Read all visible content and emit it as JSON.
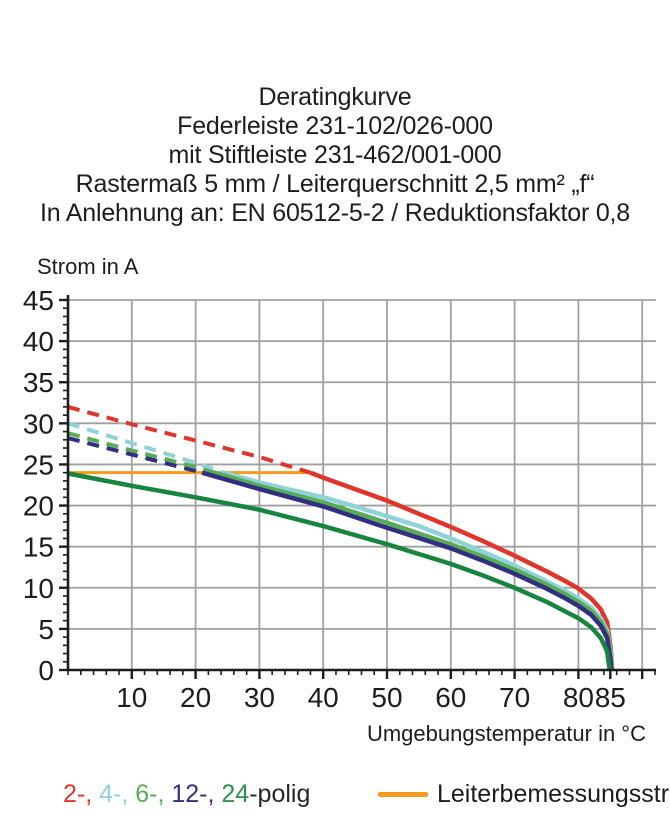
{
  "title_lines": [
    "Deratingkurve",
    "Federleiste 231-102/026-000",
    "mit Stiftleiste 231-462/001-000",
    "Rastermaß 5 mm / Leiterquerschnitt 2,5 mm² „f“",
    "In Anlehnung an: EN 60512-5-2 / Reduktionsfaktor 0,8"
  ],
  "y_axis_title": "Strom in A",
  "x_axis_title": "Umgebungstemperatur in °C",
  "legend": {
    "segments": [
      {
        "text": "2-, ",
        "color": "#e0352b"
      },
      {
        "text": "4-, ",
        "color": "#8fd2d8"
      },
      {
        "text": "6-, ",
        "color": "#58ac57"
      },
      {
        "text": "12-, ",
        "color": "#322f80"
      },
      {
        "text": "24",
        "color": "#2f9151"
      },
      {
        "text": "-polig",
        "color": "#26262e"
      }
    ],
    "rated_label": "Leiterbemessungsstrom",
    "rated_color": "#f29b1d"
  },
  "chart_data": {
    "type": "line",
    "title": "Deratingkurve",
    "xlabel": "Umgebungstemperatur in °C",
    "ylabel": "Strom in A",
    "xlim": [
      0,
      92
    ],
    "ylim": [
      0,
      45
    ],
    "grid": true,
    "x_gridlines": [
      10,
      20,
      30,
      40,
      50,
      60,
      70,
      80,
      90
    ],
    "x_tick_labels": [
      10,
      20,
      30,
      40,
      50,
      60,
      70,
      80,
      85
    ],
    "x_minor_tick_step": 2,
    "y_ticks": [
      0,
      5,
      10,
      15,
      20,
      25,
      30,
      35,
      40,
      45
    ],
    "y_minor_tick_step": 1,
    "rated_current_line": {
      "label": "Leiterbemessungsstrom",
      "value": 24,
      "x_range": [
        0,
        37.5
      ],
      "color": "#f29b1d"
    },
    "series": [
      {
        "name": "2-polig",
        "color": "#e0352b",
        "dashed_points": [
          [
            0,
            32
          ],
          [
            10,
            29.9
          ],
          [
            20,
            27.9
          ],
          [
            30,
            25.9
          ],
          [
            38,
            24
          ]
        ],
        "solid_points": [
          [
            38,
            24
          ],
          [
            40,
            23.4
          ],
          [
            45,
            22
          ],
          [
            50,
            20.6
          ],
          [
            55,
            19
          ],
          [
            60,
            17.4
          ],
          [
            65,
            15.7
          ],
          [
            70,
            13.9
          ],
          [
            75,
            12
          ],
          [
            78,
            10.8
          ],
          [
            80,
            9.9
          ],
          [
            82,
            8.7
          ],
          [
            83.5,
            7.4
          ],
          [
            84.5,
            5.8
          ],
          [
            85.1,
            2.5
          ],
          [
            85.3,
            0
          ]
        ]
      },
      {
        "name": "4-polig",
        "color": "#8fd2d8",
        "dashed_points": [
          [
            0,
            30
          ],
          [
            10,
            27.6
          ],
          [
            20,
            25.2
          ],
          [
            24.5,
            24
          ]
        ],
        "solid_points": [
          [
            24.5,
            24
          ],
          [
            30,
            22.8
          ],
          [
            35,
            21.9
          ],
          [
            40,
            21
          ],
          [
            45,
            19.9
          ],
          [
            50,
            18.7
          ],
          [
            55,
            17.5
          ],
          [
            60,
            16
          ],
          [
            65,
            14.4
          ],
          [
            70,
            12.7
          ],
          [
            75,
            10.8
          ],
          [
            78,
            9.6
          ],
          [
            80,
            8.7
          ],
          [
            82,
            7.6
          ],
          [
            83.5,
            6.3
          ],
          [
            84.5,
            4.8
          ],
          [
            85.1,
            2
          ],
          [
            85.25,
            0
          ]
        ]
      },
      {
        "name": "6-polig",
        "color": "#58ac57",
        "dashed_points": [
          [
            0,
            28.8
          ],
          [
            10,
            26.7
          ],
          [
            20,
            24.7
          ],
          [
            23,
            24
          ]
        ],
        "solid_points": [
          [
            23,
            24
          ],
          [
            30,
            22.4
          ],
          [
            40,
            20.4
          ],
          [
            50,
            17.9
          ],
          [
            60,
            15.3
          ],
          [
            65,
            13.8
          ],
          [
            70,
            12.2
          ],
          [
            75,
            10.4
          ],
          [
            78,
            9.2
          ],
          [
            80,
            8.3
          ],
          [
            82,
            7.2
          ],
          [
            83.5,
            5.9
          ],
          [
            84.5,
            4.4
          ],
          [
            85,
            1.8
          ],
          [
            85.2,
            0
          ]
        ]
      },
      {
        "name": "12-polig",
        "color": "#322f80",
        "dashed_points": [
          [
            0,
            28.2
          ],
          [
            10,
            26.2
          ],
          [
            20,
            24.2
          ],
          [
            21,
            24
          ]
        ],
        "solid_points": [
          [
            21,
            24
          ],
          [
            30,
            22
          ],
          [
            40,
            19.9
          ],
          [
            50,
            17.3
          ],
          [
            60,
            14.8
          ],
          [
            65,
            13.3
          ],
          [
            70,
            11.7
          ],
          [
            75,
            9.9
          ],
          [
            78,
            8.7
          ],
          [
            80,
            7.8
          ],
          [
            82,
            6.7
          ],
          [
            83.5,
            5.4
          ],
          [
            84.5,
            3.9
          ],
          [
            85,
            1.4
          ],
          [
            85.15,
            0
          ]
        ]
      },
      {
        "name": "24-polig",
        "color": "#17853f",
        "dashed_points": [],
        "solid_points": [
          [
            0,
            23.9
          ],
          [
            10,
            22.4
          ],
          [
            20,
            21
          ],
          [
            30,
            19.5
          ],
          [
            40,
            17.5
          ],
          [
            50,
            15.3
          ],
          [
            60,
            12.9
          ],
          [
            65,
            11.5
          ],
          [
            70,
            10
          ],
          [
            75,
            8.3
          ],
          [
            78,
            7.1
          ],
          [
            80,
            6.3
          ],
          [
            82,
            5.2
          ],
          [
            83.5,
            3.9
          ],
          [
            84.5,
            2.3
          ],
          [
            84.9,
            0
          ]
        ]
      }
    ]
  }
}
